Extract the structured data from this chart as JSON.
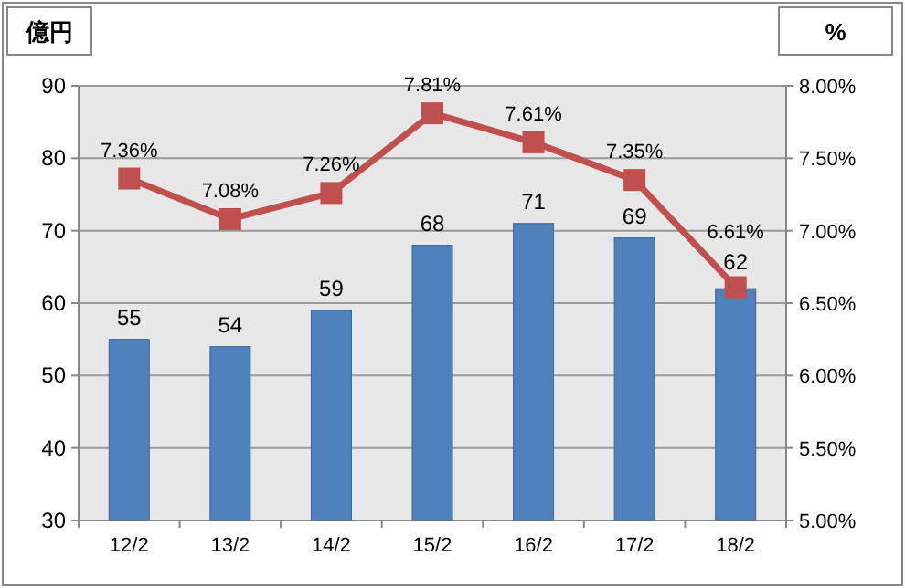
{
  "chart_data": {
    "type": "bar",
    "ylabel": "億円",
    "y2label": "%",
    "categories": [
      "12/2",
      "13/2",
      "14/2",
      "15/2",
      "16/2",
      "17/2",
      "18/2"
    ],
    "series": [
      {
        "color": "#4f81bd",
        "values": [
          55,
          54,
          59,
          68,
          71,
          69,
          62
        ],
        "data_labels": true
      },
      {
        "type": "line",
        "axis": "y2",
        "color": "#c0504d",
        "marker": "square",
        "line_style": "solid",
        "values": [
          7.36,
          7.08,
          7.26,
          7.81,
          7.61,
          7.35,
          6.61
        ],
        "value_labels": [
          "7.36%",
          "7.08%",
          "7.26%",
          "7.81%",
          "7.61%",
          "7.35%",
          "6.61%"
        ]
      }
    ],
    "ylim": [
      30,
      90
    ],
    "yticks": [
      30,
      40,
      50,
      60,
      70,
      80,
      90
    ],
    "y2lim": [
      5,
      8
    ],
    "y2ticks": [
      {
        "value": 5,
        "label": "5.00%"
      },
      {
        "value": 5.5,
        "label": "5.50%"
      },
      {
        "value": 6,
        "label": "6.00%"
      },
      {
        "value": 6.5,
        "label": "6.50%"
      },
      {
        "value": 7,
        "label": "7.00%"
      },
      {
        "value": 7.5,
        "label": "7.50%"
      },
      {
        "value": 8,
        "label": "8.00%"
      }
    ],
    "grid": "y"
  }
}
